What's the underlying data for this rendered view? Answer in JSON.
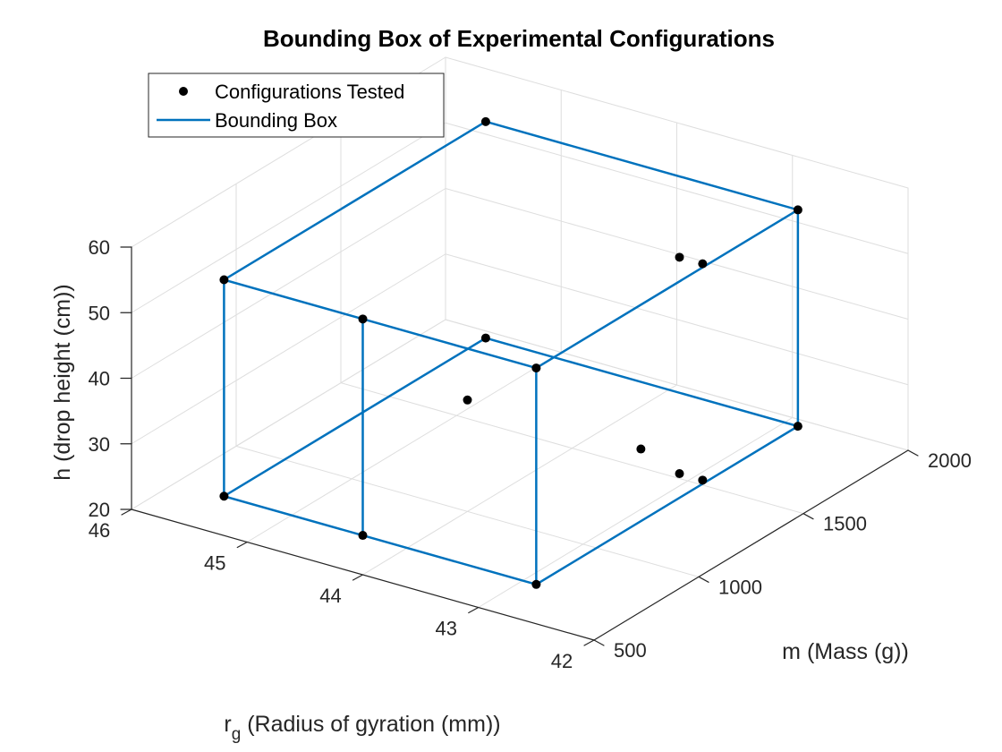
{
  "chart_data": {
    "type": "scatter",
    "title": "Bounding Box of Experimental Configurations",
    "xlabel": {
      "main": "r",
      "sub": "g",
      "rest": " (Radius of gyration (mm))"
    },
    "ylabel": "m (Mass (g))",
    "zlabel": "h (drop height (cm))",
    "xlim": [
      42,
      46
    ],
    "ylim": [
      500,
      2000
    ],
    "zlim": [
      20,
      60
    ],
    "xticks": [
      42,
      43,
      44,
      45,
      46
    ],
    "yticks": [
      500,
      1000,
      1500,
      2000
    ],
    "zticks": [
      20,
      30,
      40,
      50,
      60
    ],
    "grid": true,
    "legend": {
      "position": "top-left",
      "entries": [
        "Configurations Tested",
        "Bounding Box"
      ]
    },
    "colors": {
      "points": "#000000",
      "box": "#0072BD"
    },
    "series": [
      {
        "name": "Configurations Tested",
        "type": "scatter",
        "points": [
          {
            "x": 45.2,
            "y": 500,
            "z": 26
          },
          {
            "x": 45.2,
            "y": 500,
            "z": 59
          },
          {
            "x": 44.0,
            "y": 500,
            "z": 26
          },
          {
            "x": 44.0,
            "y": 500,
            "z": 59
          },
          {
            "x": 42.5,
            "y": 500,
            "z": 26
          },
          {
            "x": 42.5,
            "y": 500,
            "z": 59
          },
          {
            "x": 45.2,
            "y": 1750,
            "z": 26
          },
          {
            "x": 45.2,
            "y": 1750,
            "z": 59
          },
          {
            "x": 42.5,
            "y": 1750,
            "z": 26
          },
          {
            "x": 42.5,
            "y": 1750,
            "z": 59
          },
          {
            "x": 44.0,
            "y": 1000,
            "z": 37
          },
          {
            "x": 42.5,
            "y": 1000,
            "z": 37
          },
          {
            "x": 42.8,
            "y": 1350,
            "z": 25
          },
          {
            "x": 42.6,
            "y": 1350,
            "z": 25
          },
          {
            "x": 42.8,
            "y": 1350,
            "z": 58
          },
          {
            "x": 42.6,
            "y": 1350,
            "z": 58
          }
        ]
      },
      {
        "name": "Bounding Box",
        "type": "line",
        "segments": [
          [
            [
              45.2,
              500,
              26
            ],
            [
              44.0,
              500,
              26
            ]
          ],
          [
            [
              44.0,
              500,
              26
            ],
            [
              42.5,
              500,
              26
            ]
          ],
          [
            [
              45.2,
              1750,
              26
            ],
            [
              42.5,
              1750,
              26
            ]
          ],
          [
            [
              45.2,
              500,
              26
            ],
            [
              45.2,
              1750,
              26
            ]
          ],
          [
            [
              42.5,
              500,
              26
            ],
            [
              42.5,
              1750,
              26
            ]
          ],
          [
            [
              45.2,
              500,
              59
            ],
            [
              44.0,
              500,
              59
            ]
          ],
          [
            [
              44.0,
              500,
              59
            ],
            [
              42.5,
              500,
              59
            ]
          ],
          [
            [
              45.2,
              1750,
              59
            ],
            [
              42.5,
              1750,
              59
            ]
          ],
          [
            [
              45.2,
              500,
              59
            ],
            [
              45.2,
              1750,
              59
            ]
          ],
          [
            [
              42.5,
              500,
              59
            ],
            [
              42.5,
              1750,
              59
            ]
          ],
          [
            [
              45.2,
              500,
              26
            ],
            [
              45.2,
              500,
              59
            ]
          ],
          [
            [
              44.0,
              500,
              26
            ],
            [
              44.0,
              500,
              59
            ]
          ],
          [
            [
              42.5,
              500,
              26
            ],
            [
              42.5,
              500,
              59
            ]
          ],
          [
            [
              42.5,
              1750,
              26
            ],
            [
              42.5,
              1750,
              59
            ]
          ]
        ]
      }
    ]
  }
}
